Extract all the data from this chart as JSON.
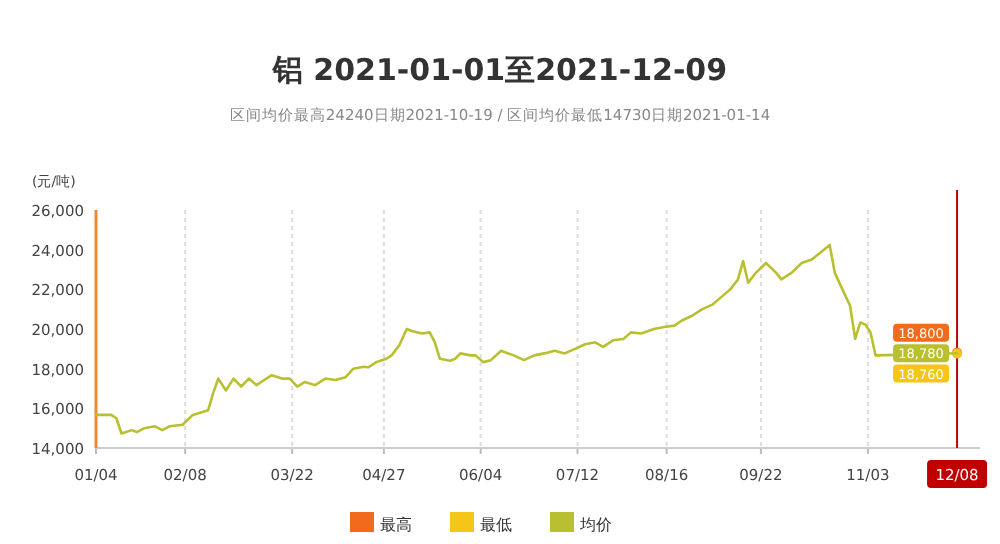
{
  "chart_data": {
    "type": "line",
    "title": "铝 2021-01-01至2021-12-09",
    "subtitle": "区间均价最高24240日期2021-10-19 / 区间均价最低14730日期2021-01-14",
    "ylabel": "(元/吨)",
    "x": [
      "2021-01-04",
      "2021-01-10",
      "2021-01-12",
      "2021-01-14",
      "2021-01-18",
      "2021-01-20",
      "2021-01-23",
      "2021-01-27",
      "2021-01-30",
      "2021-02-02",
      "2021-02-07",
      "2021-02-11",
      "2021-02-17",
      "2021-02-19",
      "2021-02-21",
      "2021-02-24",
      "2021-02-27",
      "2021-03-02",
      "2021-03-05",
      "2021-03-08",
      "2021-03-11",
      "2021-03-14",
      "2021-03-18",
      "2021-03-21",
      "2021-03-24",
      "2021-03-27",
      "2021-03-31",
      "2021-04-04",
      "2021-04-08",
      "2021-04-12",
      "2021-04-15",
      "2021-04-19",
      "2021-04-21",
      "2021-04-24",
      "2021-04-28",
      "2021-04-30",
      "2021-05-03",
      "2021-05-06",
      "2021-05-08",
      "2021-05-12",
      "2021-05-15",
      "2021-05-17",
      "2021-05-19",
      "2021-05-23",
      "2021-05-25",
      "2021-05-27",
      "2021-05-31",
      "2021-06-02",
      "2021-06-05",
      "2021-06-08",
      "2021-06-12",
      "2021-06-17",
      "2021-06-21",
      "2021-06-25",
      "2021-06-29",
      "2021-07-03",
      "2021-07-07",
      "2021-07-11",
      "2021-07-15",
      "2021-07-19",
      "2021-07-22",
      "2021-07-26",
      "2021-07-30",
      "2021-08-02",
      "2021-08-06",
      "2021-08-11",
      "2021-08-15",
      "2021-08-19",
      "2021-08-22",
      "2021-08-26",
      "2021-08-30",
      "2021-09-03",
      "2021-09-07",
      "2021-09-10",
      "2021-09-13",
      "2021-09-15",
      "2021-09-17",
      "2021-09-20",
      "2021-09-24",
      "2021-09-28",
      "2021-09-30",
      "2021-10-04",
      "2021-10-08",
      "2021-10-12",
      "2021-10-19",
      "2021-10-21",
      "2021-10-24",
      "2021-10-27",
      "2021-10-29",
      "2021-10-31",
      "2021-11-02",
      "2021-11-04",
      "2021-11-06",
      "2021-12-08"
    ],
    "series": [
      {
        "name": "最高",
        "color": "#f26b1d",
        "marker": "circle",
        "values": [
          null,
          null,
          null,
          null,
          null,
          null,
          null,
          null,
          null,
          null,
          null,
          null,
          null,
          null,
          null,
          null,
          null,
          null,
          null,
          null,
          null,
          null,
          null,
          null,
          null,
          null,
          null,
          null,
          null,
          null,
          null,
          null,
          null,
          null,
          null,
          null,
          null,
          null,
          null,
          null,
          null,
          null,
          null,
          null,
          null,
          null,
          null,
          null,
          null,
          null,
          null,
          null,
          null,
          null,
          null,
          null,
          null,
          null,
          null,
          null,
          null,
          null,
          null,
          null,
          null,
          null,
          null,
          null,
          null,
          null,
          null,
          null,
          null,
          null,
          null,
          null,
          null,
          null,
          null,
          null,
          null,
          null,
          null,
          null,
          null,
          null,
          null,
          null,
          null,
          null,
          null,
          null,
          null,
          18800
        ],
        "value_labels": [
          null,
          null,
          null,
          null,
          null,
          null,
          null,
          null,
          null,
          null,
          null,
          null,
          null,
          null,
          null,
          null,
          null,
          null,
          null,
          null,
          null,
          null,
          null,
          null,
          null,
          null,
          null,
          null,
          null,
          null,
          null,
          null,
          null,
          null,
          null,
          null,
          null,
          null,
          null,
          null,
          null,
          null,
          null,
          null,
          null,
          null,
          null,
          null,
          null,
          null,
          null,
          null,
          null,
          null,
          null,
          null,
          null,
          null,
          null,
          null,
          null,
          null,
          null,
          null,
          null,
          null,
          null,
          null,
          null,
          null,
          null,
          null,
          null,
          null,
          null,
          null,
          null,
          null,
          null,
          null,
          null,
          null,
          null,
          null,
          null,
          null,
          null,
          null,
          null,
          null,
          null,
          null,
          null,
          "18,800"
        ]
      },
      {
        "name": "最低",
        "color": "#f5c518",
        "marker": "circle",
        "values": [
          null,
          null,
          null,
          null,
          null,
          null,
          null,
          null,
          null,
          null,
          null,
          null,
          null,
          null,
          null,
          null,
          null,
          null,
          null,
          null,
          null,
          null,
          null,
          null,
          null,
          null,
          null,
          null,
          null,
          null,
          null,
          null,
          null,
          null,
          null,
          null,
          null,
          null,
          null,
          null,
          null,
          null,
          null,
          null,
          null,
          null,
          null,
          null,
          null,
          null,
          null,
          null,
          null,
          null,
          null,
          null,
          null,
          null,
          null,
          null,
          null,
          null,
          null,
          null,
          null,
          null,
          null,
          null,
          null,
          null,
          null,
          null,
          null,
          null,
          null,
          null,
          null,
          null,
          null,
          null,
          null,
          null,
          null,
          null,
          null,
          null,
          null,
          null,
          null,
          null,
          null,
          null,
          null,
          18760
        ],
        "value_labels": [
          null,
          null,
          null,
          null,
          null,
          null,
          null,
          null,
          null,
          null,
          null,
          null,
          null,
          null,
          null,
          null,
          null,
          null,
          null,
          null,
          null,
          null,
          null,
          null,
          null,
          null,
          null,
          null,
          null,
          null,
          null,
          null,
          null,
          null,
          null,
          null,
          null,
          null,
          null,
          null,
          null,
          null,
          null,
          null,
          null,
          null,
          null,
          null,
          null,
          null,
          null,
          null,
          null,
          null,
          null,
          null,
          null,
          null,
          null,
          null,
          null,
          null,
          null,
          null,
          null,
          null,
          null,
          null,
          null,
          null,
          null,
          null,
          null,
          null,
          null,
          null,
          null,
          null,
          null,
          null,
          null,
          null,
          null,
          null,
          null,
          null,
          null,
          null,
          null,
          null,
          null,
          null,
          null,
          "18,760"
        ]
      },
      {
        "name": "均价",
        "color": "#b9c030",
        "values": [
          15670,
          15670,
          15500,
          14730,
          14900,
          14800,
          15000,
          15100,
          14900,
          15100,
          15170,
          15670,
          15900,
          16770,
          17500,
          16900,
          17500,
          17100,
          17500,
          17170,
          17430,
          17670,
          17500,
          17500,
          17100,
          17330,
          17170,
          17500,
          17430,
          17570,
          18000,
          18100,
          18070,
          18330,
          18500,
          18670,
          19170,
          20000,
          19900,
          19770,
          19830,
          19330,
          18500,
          18400,
          18500,
          18770,
          18670,
          18670,
          18330,
          18430,
          18900,
          18670,
          18430,
          18670,
          18770,
          18900,
          18770,
          19000,
          19230,
          19330,
          19100,
          19430,
          19500,
          19830,
          19770,
          20000,
          20100,
          20170,
          20430,
          20670,
          21000,
          21230,
          21670,
          22000,
          22500,
          23430,
          22330,
          22830,
          23330,
          22830,
          22500,
          22830,
          23330,
          23500,
          24240,
          22830,
          22000,
          21170,
          19500,
          20330,
          20230,
          19830,
          18670,
          18780
        ],
        "value_labels": [
          null,
          null,
          null,
          null,
          null,
          null,
          null,
          null,
          null,
          null,
          null,
          null,
          null,
          null,
          null,
          null,
          null,
          null,
          null,
          null,
          null,
          null,
          null,
          null,
          null,
          null,
          null,
          null,
          null,
          null,
          null,
          null,
          null,
          null,
          null,
          null,
          null,
          null,
          null,
          null,
          null,
          null,
          null,
          null,
          null,
          null,
          null,
          null,
          null,
          null,
          null,
          null,
          null,
          null,
          null,
          null,
          null,
          null,
          null,
          null,
          null,
          null,
          null,
          null,
          null,
          null,
          null,
          null,
          null,
          null,
          null,
          null,
          null,
          null,
          null,
          null,
          null,
          null,
          null,
          null,
          null,
          null,
          null,
          null,
          null,
          null,
          null,
          null,
          null,
          null,
          null,
          null,
          null,
          "18,780"
        ]
      }
    ],
    "xlim": [
      "2021-01-04",
      "2021-12-17"
    ],
    "xticks": [
      {
        "value": "2021-01-04",
        "label": "01/04"
      },
      {
        "value": "2021-02-08",
        "label": "02/08"
      },
      {
        "value": "2021-03-22",
        "label": "03/22"
      },
      {
        "value": "2021-04-27",
        "label": "04/27"
      },
      {
        "value": "2021-06-04",
        "label": "06/04"
      },
      {
        "value": "2021-07-12",
        "label": "07/12"
      },
      {
        "value": "2021-08-16",
        "label": "08/16"
      },
      {
        "value": "2021-09-22",
        "label": "09/22"
      },
      {
        "value": "2021-11-03",
        "label": "11/03"
      }
    ],
    "ylim": [
      14000,
      26000
    ],
    "yticks": [
      {
        "value": 14000,
        "label": "14,000"
      },
      {
        "value": 16000,
        "label": "16,000"
      },
      {
        "value": 18000,
        "label": "18,000"
      },
      {
        "value": 20000,
        "label": "20,000"
      },
      {
        "value": 22000,
        "label": "22,000"
      },
      {
        "value": 24000,
        "label": "24,000"
      },
      {
        "value": 26000,
        "label": "26,000"
      }
    ],
    "ref_lines": [
      {
        "axis": "x",
        "value": "2021-12-08",
        "label": "12/08",
        "color": "#c00000"
      }
    ],
    "grid": "x",
    "legend": "bottom"
  }
}
